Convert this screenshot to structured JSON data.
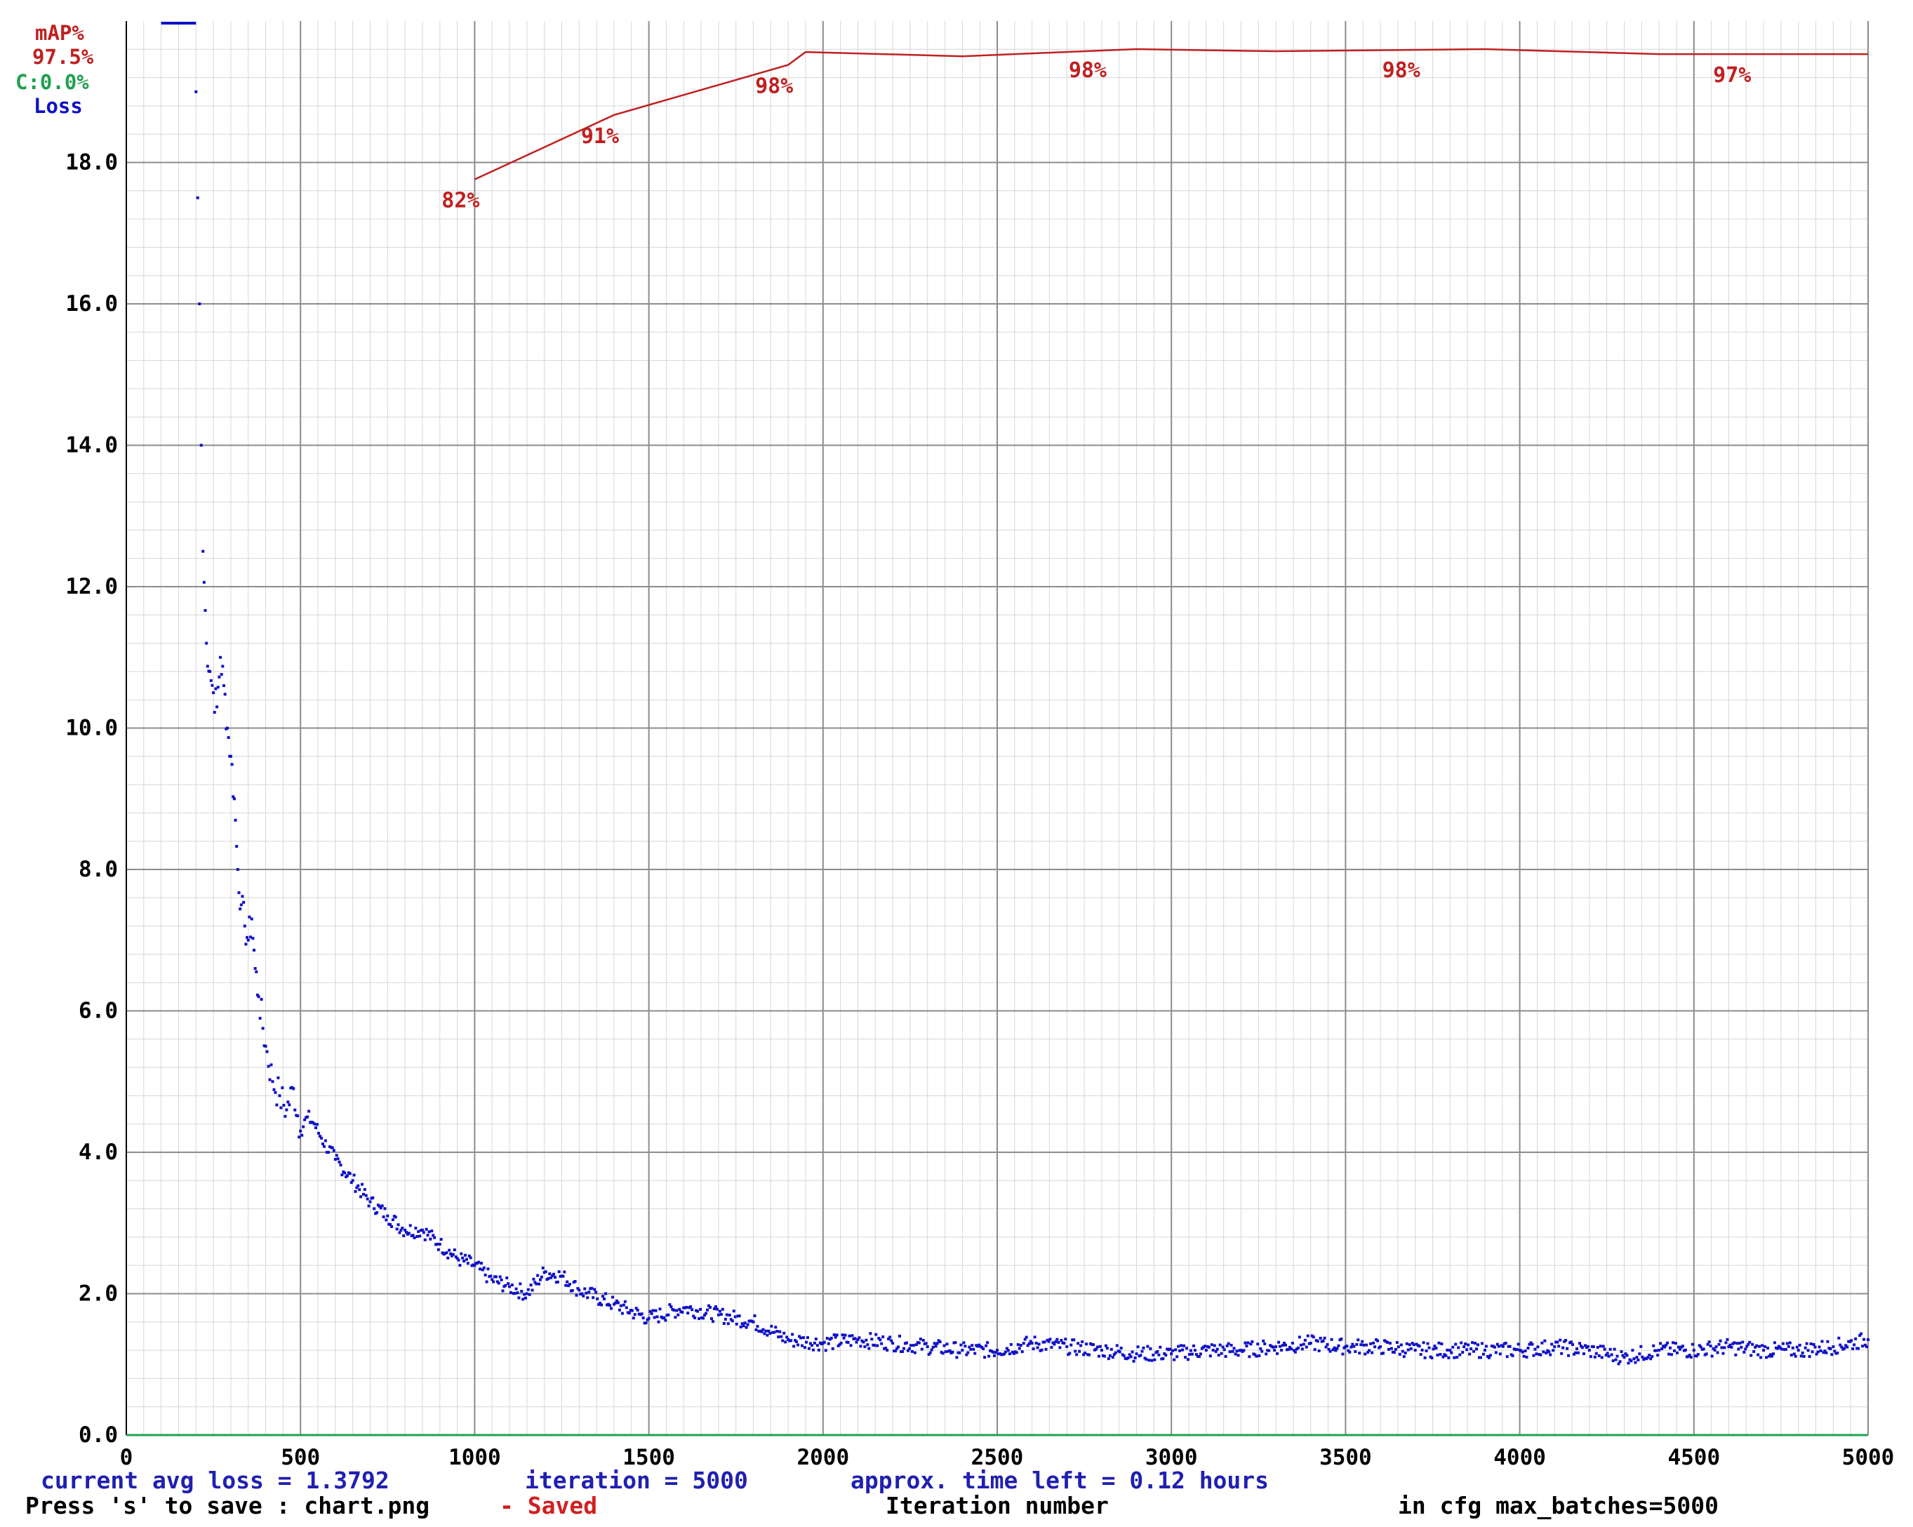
{
  "legend": {
    "map_label": "mAP%",
    "map_value": "97.5%",
    "c_value": "C:0.0%",
    "loss_label": "Loss"
  },
  "colors": {
    "map": "#c02020",
    "c": "#20a050",
    "loss": "#1010c8",
    "footer_blue": "#2020b0",
    "grid_major": "#8c8c8c",
    "grid_minor": "#d6d6d6"
  },
  "footer": {
    "line1_loss": "current avg loss = 1.3792",
    "line1_iter": "iteration = 5000",
    "line1_time": "approx. time left = 0.12 hours",
    "line2_save": "Press 's' to save : chart.png",
    "line2_saved": "- Saved",
    "line2_xlabel": "Iteration number",
    "line2_cfg": "in cfg max_batches=5000"
  },
  "chart_data": {
    "type": "line",
    "xlabel": "Iteration number",
    "ylabel": "",
    "xlim": [
      0,
      5000
    ],
    "ylim": [
      0,
      20
    ],
    "x_ticks": [
      0,
      500,
      1000,
      1500,
      2000,
      2500,
      3000,
      3500,
      4000,
      4500,
      5000
    ],
    "y_ticks": [
      0,
      2,
      4,
      6,
      8,
      10,
      12,
      14,
      16,
      18
    ],
    "y_tick_labels": [
      "0.0",
      "2.0",
      "4.0",
      "6.0",
      "8.0",
      "10.0",
      "12.0",
      "14.0",
      "16.0",
      "18.0"
    ],
    "grid": true,
    "legend_position": "top-left",
    "series": [
      {
        "name": "Loss",
        "kind": "scatter",
        "x": [
          200,
          205,
          210,
          215,
          220,
          230,
          240,
          250,
          260,
          270,
          280,
          290,
          300,
          310,
          320,
          330,
          340,
          350,
          360,
          370,
          380,
          400,
          420,
          440,
          460,
          480,
          500,
          520,
          540,
          560,
          600,
          650,
          700,
          750,
          800,
          850,
          900,
          950,
          1000,
          1050,
          1100,
          1150,
          1200,
          1250,
          1300,
          1400,
          1500,
          1600,
          1700,
          1800,
          1900,
          2000,
          2100,
          2200,
          2300,
          2400,
          2500,
          2600,
          2700,
          2800,
          2900,
          3000,
          3100,
          3200,
          3300,
          3400,
          3500,
          3600,
          3700,
          3800,
          3900,
          4000,
          4100,
          4200,
          4300,
          4400,
          4500,
          4600,
          4700,
          4800,
          4900,
          5000
        ],
        "y": [
          19.0,
          17.5,
          16.0,
          14.0,
          12.5,
          11.2,
          10.8,
          10.5,
          10.3,
          11.0,
          10.6,
          10.0,
          9.6,
          9.0,
          8.0,
          7.5,
          7.2,
          7.0,
          7.3,
          6.6,
          6.2,
          5.5,
          5.0,
          4.8,
          4.6,
          4.9,
          4.3,
          4.5,
          4.4,
          4.2,
          3.9,
          3.6,
          3.3,
          3.1,
          2.9,
          2.9,
          2.7,
          2.5,
          2.4,
          2.2,
          2.1,
          2.0,
          2.3,
          2.25,
          2.05,
          1.85,
          1.65,
          1.8,
          1.7,
          1.6,
          1.35,
          1.3,
          1.35,
          1.3,
          1.25,
          1.2,
          1.2,
          1.3,
          1.25,
          1.2,
          1.15,
          1.15,
          1.2,
          1.2,
          1.25,
          1.3,
          1.25,
          1.25,
          1.2,
          1.2,
          1.2,
          1.2,
          1.25,
          1.2,
          1.1,
          1.2,
          1.2,
          1.25,
          1.2,
          1.2,
          1.25,
          1.35
        ]
      },
      {
        "name": "mAP%",
        "kind": "line",
        "x": [
          1000,
          1400,
          1900,
          1950,
          2400,
          2900,
          3300,
          3900,
          4400,
          5000
        ],
        "y": [
          82,
          91,
          98,
          99.8,
          99.2,
          100.2,
          99.9,
          100.2,
          99.5,
          99.5
        ],
        "labeled_points": [
          {
            "x": 1000,
            "y": 82,
            "label": "82%"
          },
          {
            "x": 1400,
            "y": 91,
            "label": "91%"
          },
          {
            "x": 1900,
            "y": 98,
            "label": "98%"
          },
          {
            "x": 2800,
            "y": 100.2,
            "label": "98%"
          },
          {
            "x": 3700,
            "y": 100.2,
            "label": "98%"
          },
          {
            "x": 4650,
            "y": 99.5,
            "label": "97%"
          }
        ]
      }
    ]
  }
}
